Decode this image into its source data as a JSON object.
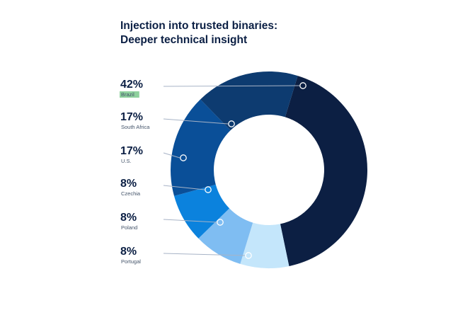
{
  "title_line1": "Injection into trusted binaries:",
  "title_line2": "Deeper technical insight",
  "chart_data": {
    "type": "pie",
    "donut": true,
    "slices": [
      {
        "label": "Brazil",
        "value": 42,
        "display": "42%",
        "color": "#0c1f43",
        "highlight": "#8fd19e"
      },
      {
        "label": "Portugal",
        "value": 8,
        "display": "8%",
        "color": "#c4e6fb"
      },
      {
        "label": "Poland",
        "value": 8,
        "display": "8%",
        "color": "#7fbdf2"
      },
      {
        "label": "Czechia",
        "value": 8,
        "display": "8%",
        "color": "#0b82dd"
      },
      {
        "label": "U.S.",
        "value": 17,
        "display": "17%",
        "color": "#0a4f98"
      },
      {
        "label": "South Africa",
        "value": 17,
        "display": "17%",
        "color": "#0d3b70"
      }
    ],
    "legend_order": [
      "Brazil",
      "South Africa",
      "U.S.",
      "Czechia",
      "Poland",
      "Portugal"
    ]
  }
}
